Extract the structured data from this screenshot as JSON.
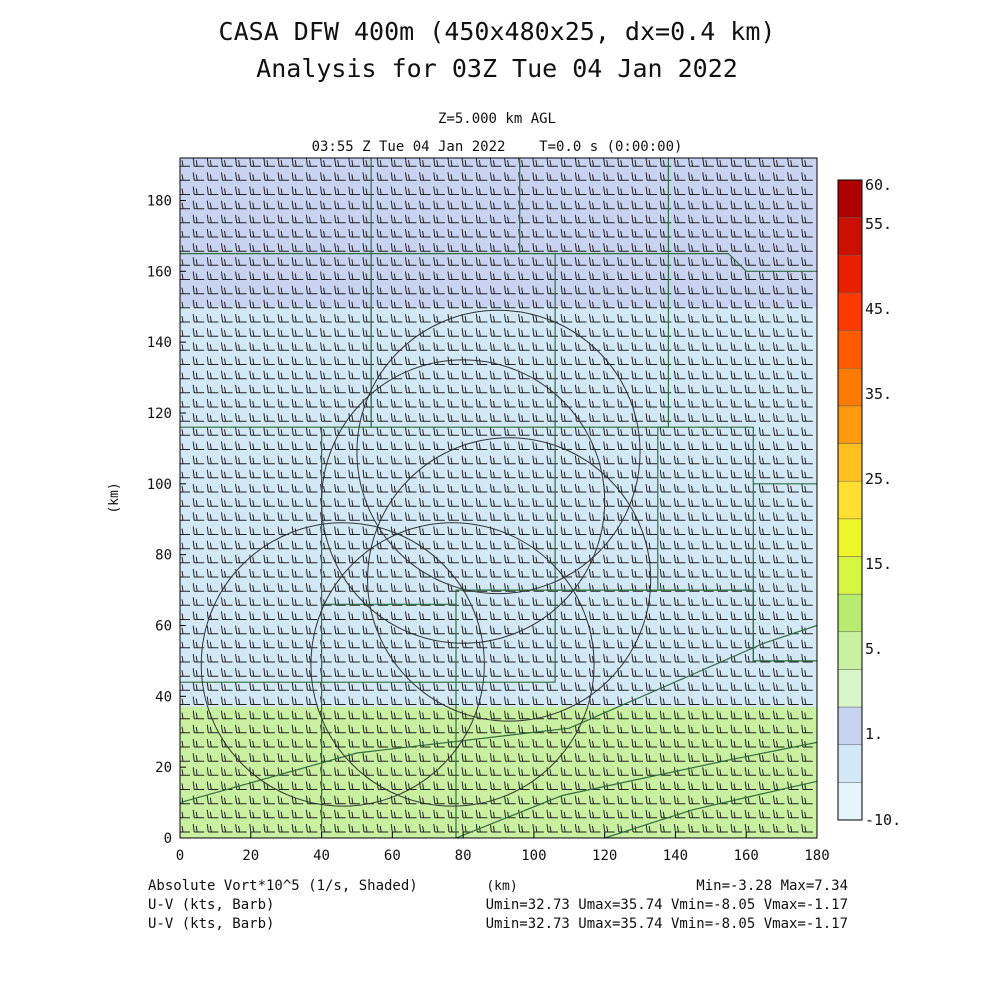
{
  "chart_data": {
    "type": "heatmap",
    "title_line1": "CASA DFW 400m (450x480x25, dx=0.4 km)",
    "title_line2": "Analysis for 03Z Tue 04 Jan 2022",
    "level_label": "Z=5.000 km AGL",
    "time_label": "03:55 Z Tue 04 Jan 2022    T=0.0 s (0:00:00)",
    "xlabel": "(km)",
    "ylabel": "(km)",
    "xlim": [
      0,
      180
    ],
    "ylim": [
      0,
      192
    ],
    "x_ticks": [
      0,
      20,
      40,
      60,
      80,
      100,
      120,
      140,
      160,
      180
    ],
    "y_ticks": [
      0,
      20,
      40,
      60,
      80,
      100,
      120,
      140,
      160,
      180
    ],
    "colorbar": {
      "levels": [
        -10,
        1,
        5,
        15,
        25,
        35,
        45,
        55,
        60
      ],
      "tick_labels": [
        "60.",
        "55.",
        "45.",
        "35.",
        "25.",
        "15.",
        "5.",
        "1.",
        "-10."
      ],
      "colors": [
        "#e6f4fb",
        "#d2e8f7",
        "#c8d3f2",
        "#d8f5c8",
        "#c8f0a0",
        "#b8ec70",
        "#d6f542",
        "#eef528",
        "#ffe030",
        "#ffc020",
        "#ff9a10",
        "#ff7a00",
        "#ff5a00",
        "#ff3a00",
        "#e82000",
        "#cc1000",
        "#b00000"
      ]
    },
    "field_regions": [
      {
        "name": "south",
        "y_range": [
          0,
          37
        ],
        "color": "#c8f0a0"
      },
      {
        "name": "north",
        "y_range": [
          37,
          192
        ],
        "color": "#d2e8f7"
      },
      {
        "name": "northeast",
        "y_range": [
          150,
          192
        ],
        "color": "#c8d3f2"
      }
    ],
    "field_variable": "Absolute Vort*10^5 (1/s, Shaded)",
    "barb_variable_1": "U-V (kts, Barb)",
    "barb_variable_2": "U-V (kts, Barb)",
    "min_max": "Min=-3.28 Max=7.34",
    "uv_range_1": "Umin=32.73 Umax=35.74 Vmin=-8.05 Vmax=-1.17",
    "uv_range_2": "Umin=32.73 Umax=35.74 Vmin=-8.05 Vmax=-1.17",
    "radar_rings": [
      {
        "cx": 90,
        "cy": 109,
        "r": 40
      },
      {
        "cx": 80,
        "cy": 95,
        "r": 40
      },
      {
        "cx": 93,
        "cy": 73,
        "r": 40
      },
      {
        "cx": 46,
        "cy": 49,
        "r": 40
      },
      {
        "cx": 77,
        "cy": 49,
        "r": 40
      }
    ],
    "county_lines": [
      [
        [
          0,
          165
        ],
        [
          54,
          165
        ],
        [
          54,
          192
        ]
      ],
      [
        [
          54,
          165
        ],
        [
          54,
          116
        ],
        [
          0,
          116
        ]
      ],
      [
        [
          54,
          116
        ],
        [
          54,
          165
        ],
        [
          96,
          165
        ]
      ],
      [
        [
          96,
          165
        ],
        [
          96,
          192
        ]
      ],
      [
        [
          96,
          165
        ],
        [
          106,
          165
        ],
        [
          106,
          116
        ],
        [
          54,
          116
        ]
      ],
      [
        [
          106,
          165
        ],
        [
          138,
          165
        ],
        [
          138,
          116
        ],
        [
          106,
          116
        ]
      ],
      [
        [
          138,
          165
        ],
        [
          138,
          192
        ]
      ],
      [
        [
          106,
          116
        ],
        [
          106,
          70
        ],
        [
          78,
          70
        ],
        [
          78,
          66
        ],
        [
          40,
          66
        ],
        [
          40,
          116
        ]
      ],
      [
        [
          40,
          66
        ],
        [
          40,
          44
        ],
        [
          0,
          44
        ]
      ],
      [
        [
          78,
          66
        ],
        [
          78,
          44
        ],
        [
          40,
          44
        ]
      ],
      [
        [
          40,
          44
        ],
        [
          40,
          0
        ]
      ],
      [
        [
          78,
          44
        ],
        [
          78,
          0
        ]
      ],
      [
        [
          106,
          70
        ],
        [
          106,
          44
        ],
        [
          78,
          44
        ]
      ],
      [
        [
          106,
          70
        ],
        [
          135,
          70
        ],
        [
          135,
          116
        ]
      ],
      [
        [
          135,
          70
        ],
        [
          162,
          70
        ],
        [
          162,
          50
        ],
        [
          180,
          50
        ]
      ],
      [
        [
          135,
          116
        ],
        [
          162,
          116
        ],
        [
          162,
          100
        ],
        [
          180,
          100
        ]
      ],
      [
        [
          162,
          100
        ],
        [
          162,
          50
        ]
      ],
      [
        [
          138,
          165
        ],
        [
          155,
          165
        ],
        [
          160,
          160
        ],
        [
          180,
          160
        ]
      ],
      [
        [
          0,
          10
        ],
        [
          50,
          24
        ],
        [
          110,
          31
        ],
        [
          165,
          55
        ],
        [
          180,
          60
        ]
      ],
      [
        [
          78,
          0
        ],
        [
          108,
          12
        ],
        [
          155,
          22
        ],
        [
          180,
          27
        ]
      ],
      [
        [
          120,
          0
        ],
        [
          145,
          8
        ],
        [
          180,
          16
        ]
      ]
    ],
    "barb_grid": {
      "dx_km": 4.0,
      "dy_km": 4.0
    }
  }
}
